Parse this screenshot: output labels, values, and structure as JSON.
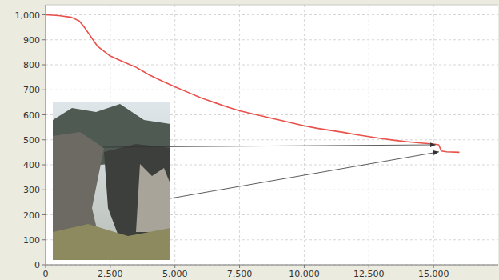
{
  "chart_data": {
    "type": "line",
    "color": "#e8504a",
    "grid": true,
    "x": [
      0,
      500,
      1000,
      1300,
      1500,
      1800,
      2000,
      2500,
      3000,
      3500,
      4000,
      4500,
      5000,
      5500,
      6000,
      6500,
      7000,
      7500,
      8000,
      8500,
      9000,
      9500,
      10000,
      10500,
      11000,
      11500,
      12000,
      12500,
      13000,
      13500,
      14000,
      14500,
      15000,
      15200,
      15300,
      15500,
      16000
    ],
    "values": [
      1000,
      997,
      990,
      975,
      950,
      905,
      875,
      835,
      812,
      790,
      760,
      735,
      712,
      690,
      668,
      650,
      632,
      616,
      604,
      592,
      580,
      568,
      556,
      546,
      538,
      530,
      521,
      513,
      505,
      498,
      492,
      487,
      483,
      480,
      455,
      452,
      450
    ],
    "xlim": [
      0,
      17500
    ],
    "ylim": [
      0,
      1040
    ],
    "xticks": [
      0,
      {
        "value": 2500,
        "label": "2.500"
      },
      {
        "value": 5000,
        "label": "5.000"
      },
      {
        "value": 7500,
        "label": "7.500"
      },
      {
        "value": 10000,
        "label": "10.000"
      },
      {
        "value": 12500,
        "label": "12.500"
      },
      {
        "value": 15000,
        "label": "15.000"
      }
    ],
    "yticks": [
      0,
      100,
      200,
      300,
      400,
      500,
      600,
      700,
      800,
      900,
      {
        "value": 1000,
        "label": "1,000"
      }
    ]
  }
}
